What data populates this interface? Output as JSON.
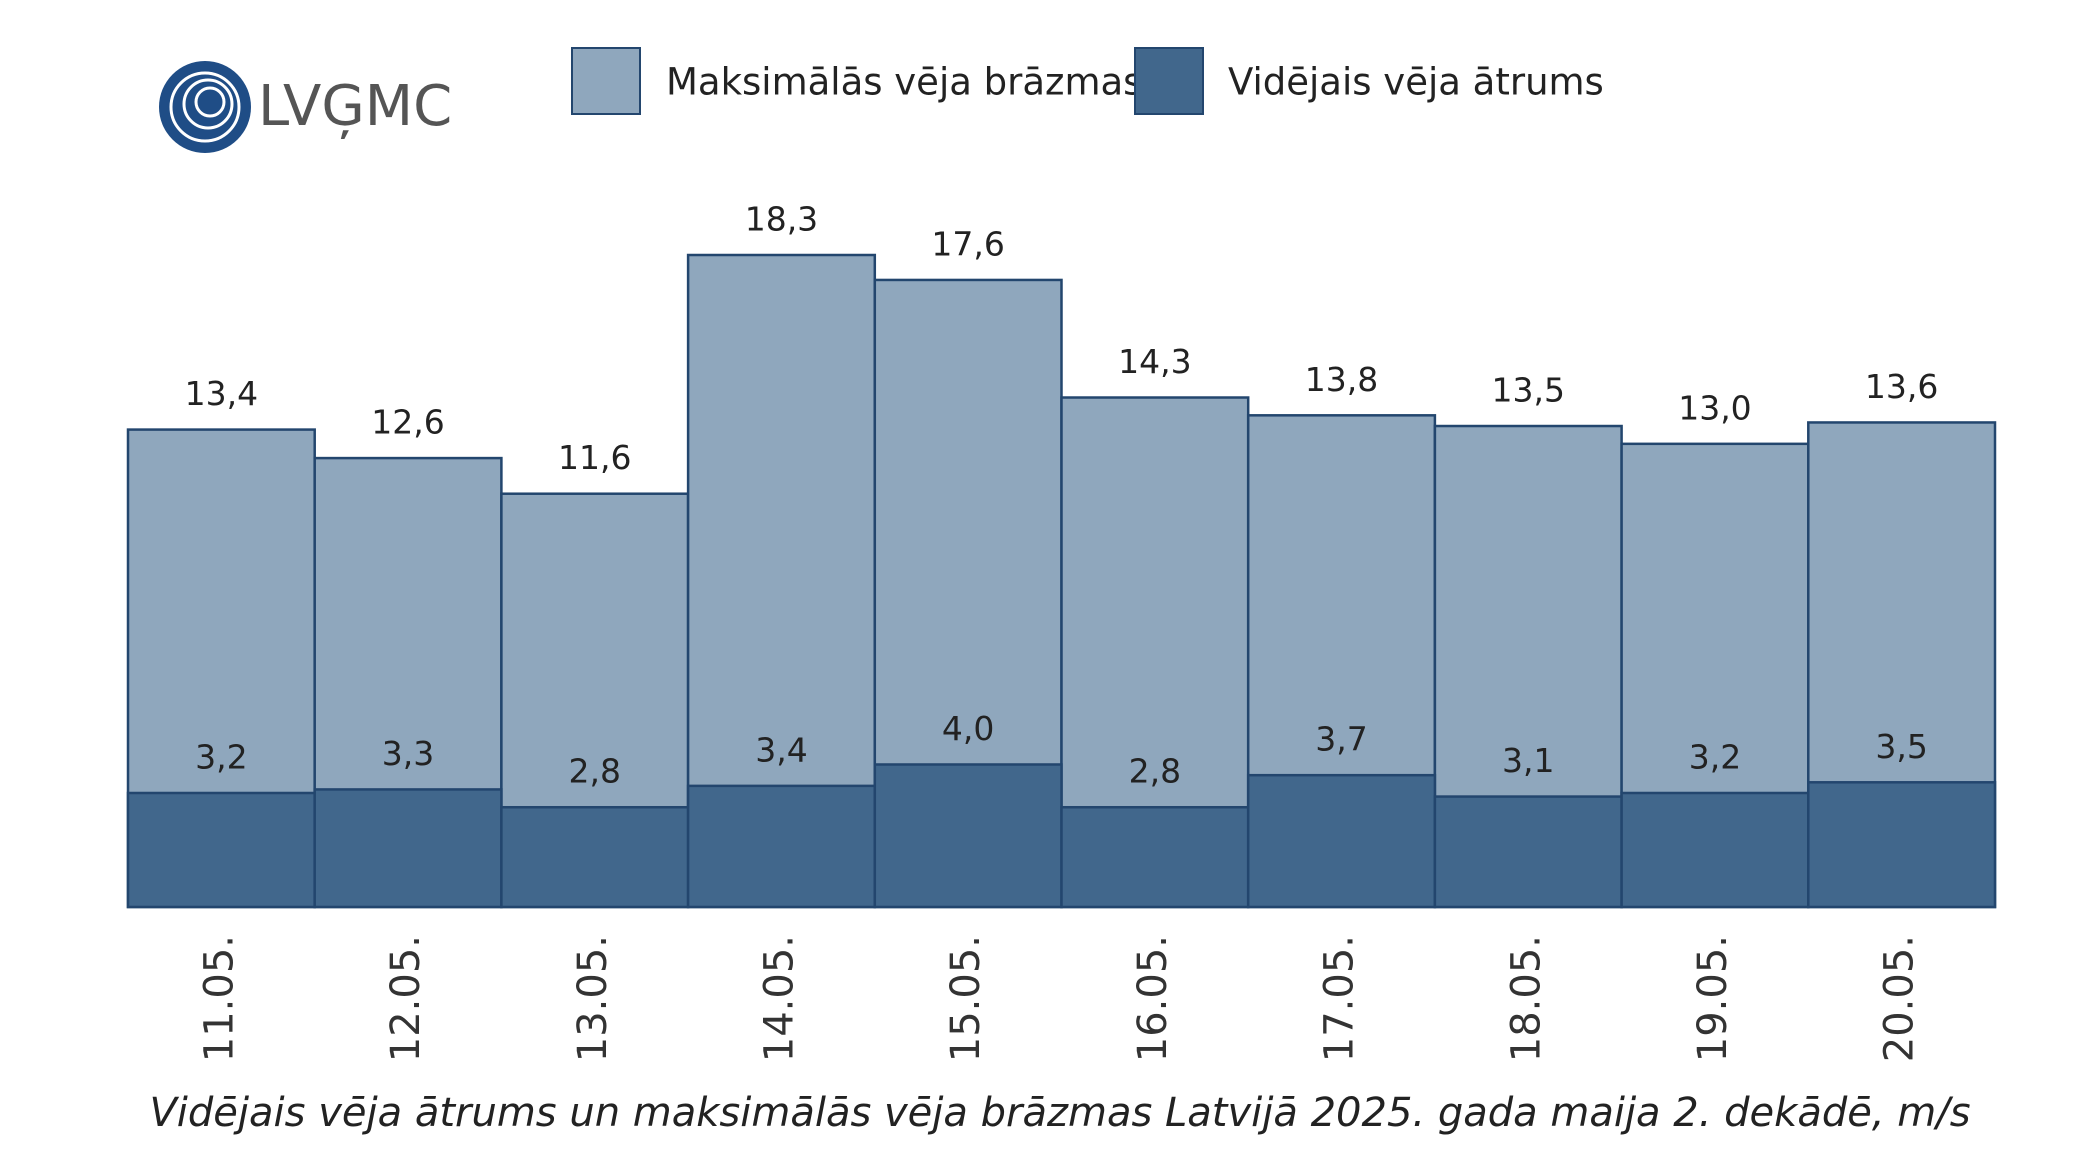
{
  "logo": "LVĢMC",
  "chart_data": {
    "type": "bar",
    "title": "Vidējais vēja ātrums un maksimālās vēja brāzmas Latvijā 2025. gada maija 2. dekādē, m/s",
    "categories": [
      "11.05.",
      "12.05.",
      "13.05.",
      "14.05.",
      "15.05.",
      "16.05.",
      "17.05.",
      "18.05.",
      "19.05.",
      "20.05."
    ],
    "series": [
      {
        "name": "Maksimālās vēja brāzmas",
        "color": "#8fa7bd",
        "values": [
          13.4,
          12.6,
          11.6,
          18.3,
          17.6,
          14.3,
          13.8,
          13.5,
          13.0,
          13.6
        ],
        "value_labels": [
          "13,4",
          "12,6",
          "11,6",
          "18,3",
          "17,6",
          "14,3",
          "13,8",
          "13,5",
          "13,0",
          "13,6"
        ]
      },
      {
        "name": "Vidējais vēja ātrums",
        "color": "#41678c",
        "values": [
          3.2,
          3.3,
          2.8,
          3.4,
          4.0,
          2.8,
          3.7,
          3.1,
          3.2,
          3.5
        ],
        "value_labels": [
          "3,2",
          "3,3",
          "2,8",
          "3,4",
          "4,0",
          "2,8",
          "3,7",
          "3,1",
          "3,2",
          "3,5"
        ]
      }
    ]
  }
}
